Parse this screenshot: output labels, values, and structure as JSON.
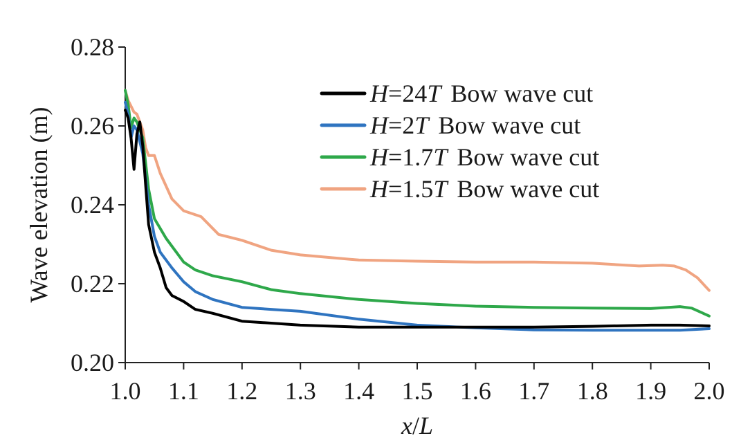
{
  "chart_data": {
    "type": "line",
    "title": "",
    "xlabel": "x/L",
    "xlabel_parts": {
      "num": "x",
      "slash": "/",
      "den": "L"
    },
    "ylabel": "Wave elevation (m)",
    "xlim": [
      1.0,
      2.0
    ],
    "ylim": [
      0.2,
      0.28
    ],
    "x_ticks": [
      1.0,
      1.1,
      1.2,
      1.3,
      1.4,
      1.5,
      1.6,
      1.7,
      1.8,
      1.9,
      2.0
    ],
    "x_tick_labels": [
      "1.0",
      "1.1",
      "1.2",
      "1.3",
      "1.4",
      "1.5",
      "1.6",
      "1.7",
      "1.8",
      "1.9",
      "2.0"
    ],
    "y_ticks": [
      0.2,
      0.22,
      0.24,
      0.26,
      0.28
    ],
    "y_tick_labels": [
      "0.20",
      "0.22",
      "0.24",
      "0.26",
      "0.28"
    ],
    "grid": false,
    "legend_position": "top-right",
    "series": [
      {
        "name": "H=24T Bow wave cut",
        "label_var": "H",
        "label_eq": "=24",
        "label_T": "T",
        "label_rest": "Bow wave cut",
        "color": "#000000",
        "x": [
          1.0,
          1.005,
          1.01,
          1.015,
          1.02,
          1.025,
          1.03,
          1.035,
          1.04,
          1.05,
          1.06,
          1.07,
          1.08,
          1.1,
          1.12,
          1.15,
          1.2,
          1.3,
          1.4,
          1.5,
          1.6,
          1.7,
          1.8,
          1.9,
          1.95,
          2.0
        ],
        "y": [
          0.264,
          0.262,
          0.257,
          0.249,
          0.258,
          0.261,
          0.255,
          0.245,
          0.235,
          0.228,
          0.224,
          0.219,
          0.217,
          0.2155,
          0.2135,
          0.2125,
          0.2105,
          0.2095,
          0.209,
          0.209,
          0.209,
          0.209,
          0.2092,
          0.2095,
          0.2095,
          0.2093
        ]
      },
      {
        "name": "H=2T Bow wave cut",
        "label_var": "H",
        "label_eq": "=2",
        "label_T": "T",
        "label_rest": "Bow wave cut",
        "color": "#2f74c0",
        "x": [
          1.0,
          1.005,
          1.01,
          1.015,
          1.02,
          1.03,
          1.04,
          1.05,
          1.06,
          1.08,
          1.1,
          1.12,
          1.15,
          1.2,
          1.25,
          1.3,
          1.4,
          1.5,
          1.6,
          1.7,
          1.8,
          1.9,
          1.95,
          2.0
        ],
        "y": [
          0.266,
          0.263,
          0.257,
          0.26,
          0.259,
          0.253,
          0.24,
          0.232,
          0.228,
          0.224,
          0.2205,
          0.218,
          0.216,
          0.214,
          0.2135,
          0.213,
          0.211,
          0.2095,
          0.2088,
          0.2083,
          0.2082,
          0.2082,
          0.2082,
          0.2086
        ]
      },
      {
        "name": "H=1.7T Bow wave cut",
        "label_var": "H",
        "label_eq": "=1.7",
        "label_T": "T",
        "label_rest": "Bow wave cut",
        "color": "#2ea84a",
        "x": [
          1.0,
          1.005,
          1.01,
          1.015,
          1.02,
          1.03,
          1.04,
          1.05,
          1.07,
          1.1,
          1.12,
          1.15,
          1.2,
          1.25,
          1.3,
          1.4,
          1.5,
          1.6,
          1.7,
          1.8,
          1.9,
          1.93,
          1.95,
          1.97,
          2.0
        ],
        "y": [
          0.269,
          0.2655,
          0.2595,
          0.262,
          0.261,
          0.257,
          0.244,
          0.2365,
          0.2315,
          0.2255,
          0.2235,
          0.222,
          0.2205,
          0.2185,
          0.2175,
          0.216,
          0.215,
          0.2143,
          0.214,
          0.2138,
          0.2137,
          0.214,
          0.2142,
          0.2138,
          0.2118
        ]
      },
      {
        "name": "H=1.5T Bow wave cut",
        "label_var": "H",
        "label_eq": "=1.5",
        "label_T": "T",
        "label_rest": "Bow wave cut",
        "color": "#f0a481",
        "x": [
          1.0,
          1.005,
          1.01,
          1.015,
          1.02,
          1.03,
          1.035,
          1.04,
          1.05,
          1.06,
          1.08,
          1.1,
          1.13,
          1.16,
          1.2,
          1.25,
          1.3,
          1.4,
          1.5,
          1.6,
          1.7,
          1.8,
          1.88,
          1.92,
          1.94,
          1.96,
          1.98,
          2.0
        ],
        "y": [
          0.269,
          0.2665,
          0.265,
          0.2635,
          0.263,
          0.259,
          0.2545,
          0.2525,
          0.2525,
          0.248,
          0.2415,
          0.2385,
          0.237,
          0.2325,
          0.231,
          0.2285,
          0.2273,
          0.226,
          0.2257,
          0.2255,
          0.2255,
          0.2252,
          0.2245,
          0.2247,
          0.2245,
          0.2235,
          0.2215,
          0.2183
        ]
      }
    ]
  }
}
